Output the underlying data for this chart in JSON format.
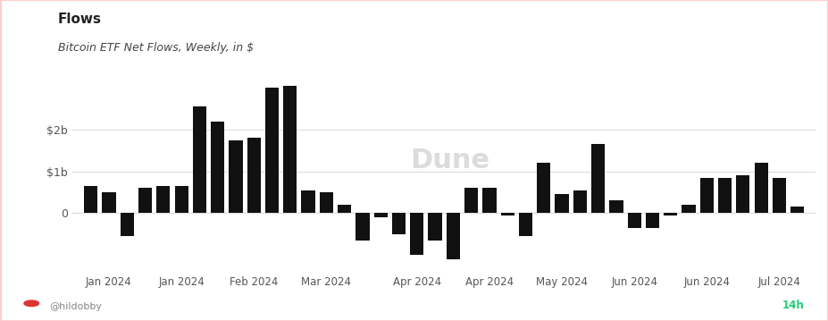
{
  "title": "Flows",
  "subtitle": "Bitcoin ETF Net Flows, Weekly, in $",
  "bar_values": [
    0.65,
    0.5,
    -0.55,
    0.6,
    0.65,
    0.65,
    2.55,
    2.2,
    1.75,
    1.8,
    3.0,
    3.05,
    0.55,
    0.5,
    0.2,
    -0.65,
    -0.1,
    -0.5,
    -1.0,
    -0.65,
    -1.1,
    0.6,
    0.6,
    -0.05,
    -0.55,
    1.2,
    0.45,
    0.55,
    1.65,
    0.3,
    -0.35,
    -0.35,
    -0.05,
    0.2,
    0.85,
    0.85,
    0.9,
    1.2,
    0.85,
    0.15
  ],
  "tick_labels": [
    "Jan 2024",
    "Jan 2024",
    "Feb 2024",
    "Mar 2024",
    "Apr 2024",
    "Apr 2024",
    "May 2024",
    "Jun 2024",
    "Jun 2024",
    "Jul 2024"
  ],
  "tick_positions": [
    1,
    5,
    9,
    13,
    18,
    22,
    26,
    30,
    34,
    38
  ],
  "ytick_labels": [
    "0",
    "$1b",
    "$2b"
  ],
  "ytick_values": [
    0,
    1,
    2
  ],
  "ylim": [
    -1.4,
    3.4
  ],
  "bar_color": "#111111",
  "bg_color": "#ffffff",
  "grid_color": "#dddddd",
  "title_color": "#222222",
  "subtitle_color": "#444444",
  "watermark_text": "Dune",
  "watermark_color": "#c0c0c0",
  "footer_text": "@hildobby",
  "footer_color": "#888888",
  "badge_text": "14h",
  "badge_color": "#22cc77",
  "border_color": "#ffcccc"
}
